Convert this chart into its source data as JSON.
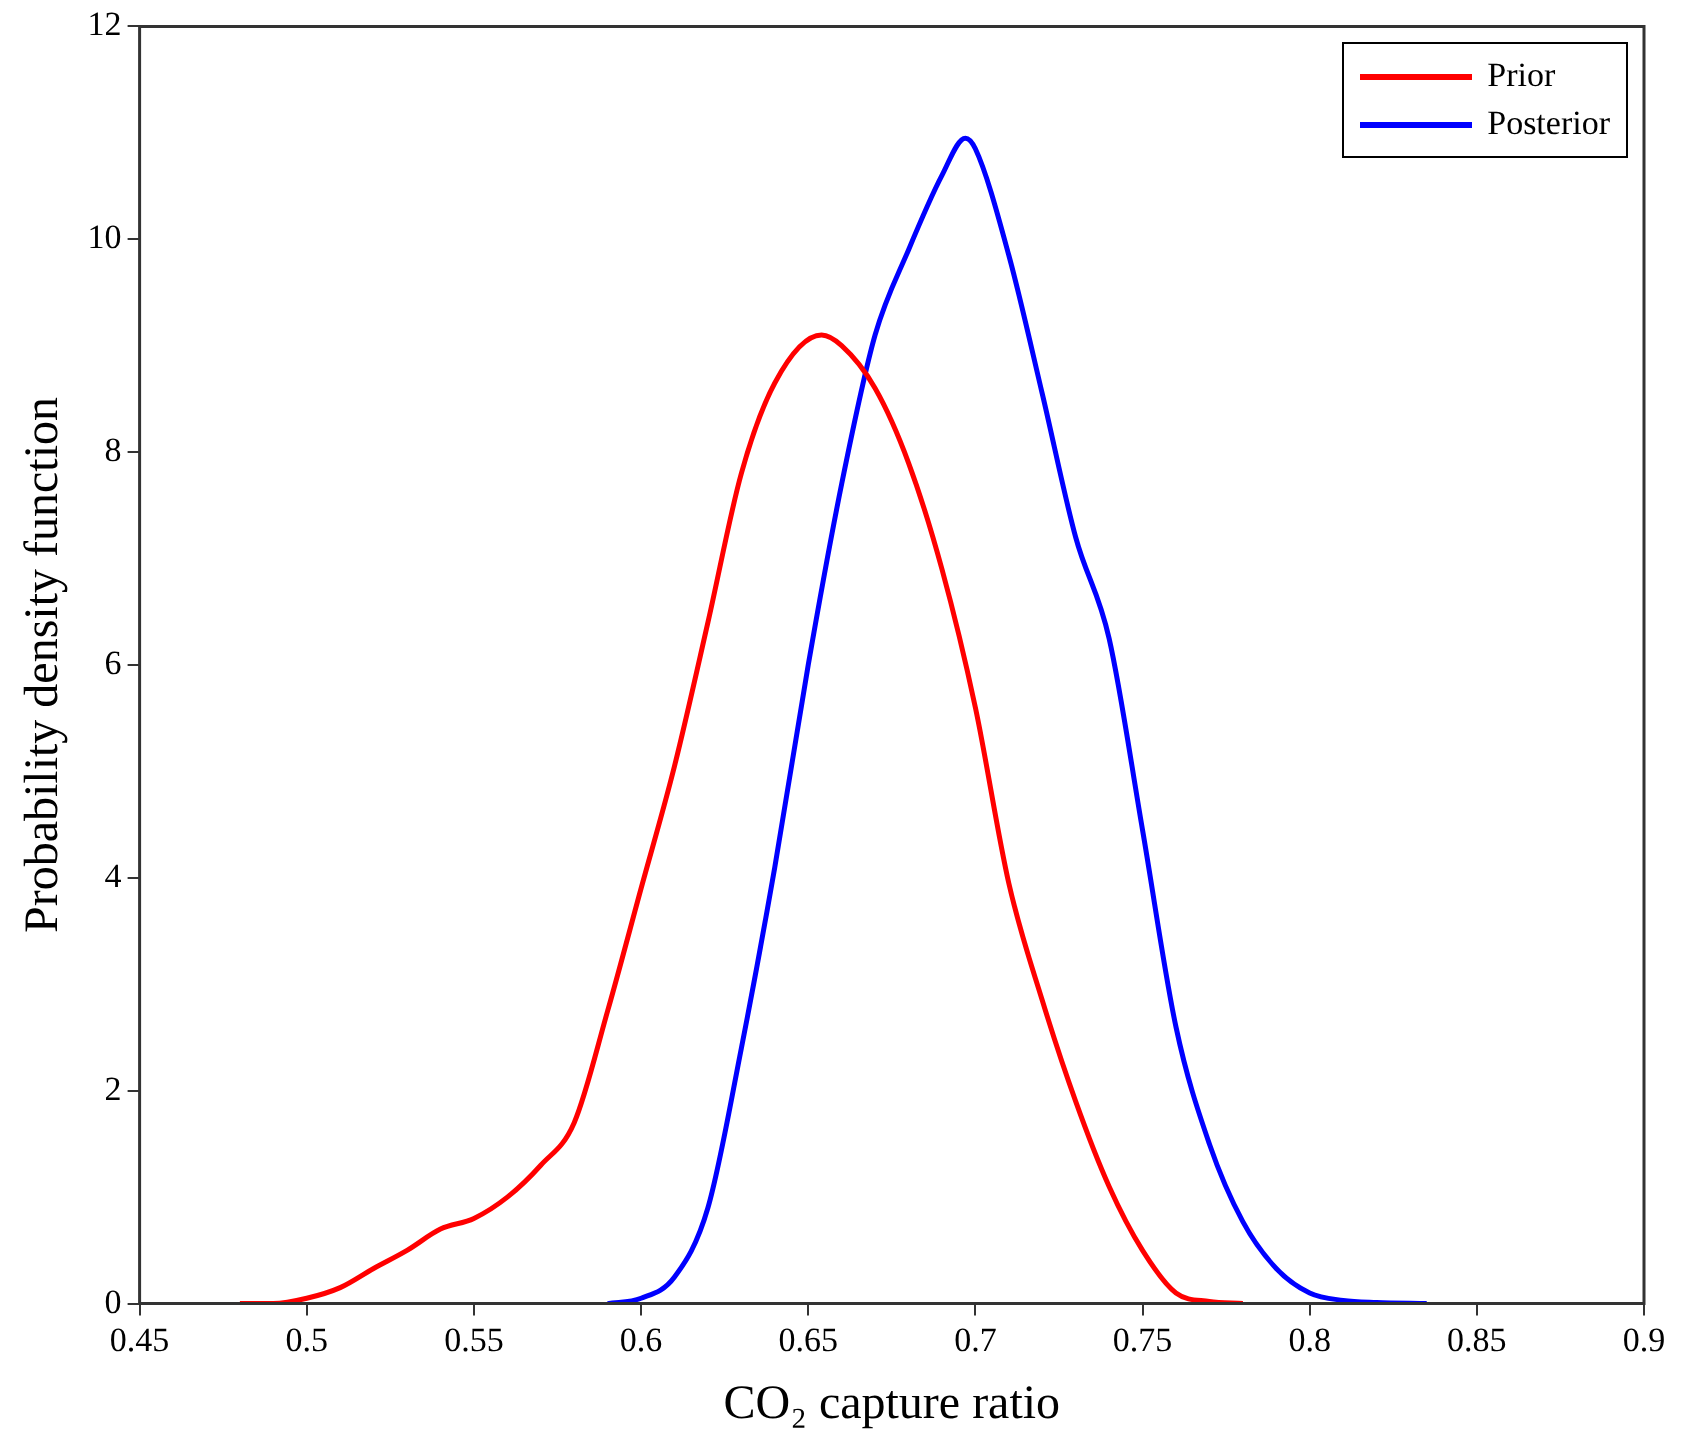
{
  "chart_data": {
    "type": "line",
    "xlabel": "CO₂ capture ratio",
    "ylabel": "Probability density function",
    "xlim": [
      0.45,
      0.9
    ],
    "xticks": [
      0.45,
      0.5,
      0.55,
      0.6,
      0.65,
      0.7,
      0.75,
      0.8,
      0.85,
      0.9
    ],
    "ylim": [
      0,
      12
    ],
    "yticks": [
      0,
      2,
      4,
      6,
      8,
      10,
      12
    ],
    "grid": false,
    "legend": "top right",
    "marker": "none",
    "line_style": "solid",
    "series": [
      {
        "name": "Prior",
        "color": "#ff0000",
        "x": [
          0.48,
          0.49,
          0.5,
          0.51,
          0.52,
          0.53,
          0.54,
          0.55,
          0.56,
          0.57,
          0.58,
          0.59,
          0.6,
          0.61,
          0.62,
          0.63,
          0.64,
          0.654,
          0.66,
          0.67,
          0.68,
          0.69,
          0.7,
          0.71,
          0.72,
          0.73,
          0.74,
          0.75,
          0.76,
          0.77,
          0.78
        ],
        "values": [
          0,
          0,
          0.05,
          0.15,
          0.33,
          0.5,
          0.7,
          0.8,
          1.0,
          1.3,
          1.7,
          2.75,
          3.9,
          5.05,
          6.4,
          7.8,
          8.65,
          9.1,
          9.0,
          8.6,
          7.9,
          6.9,
          5.6,
          3.95,
          2.85,
          1.9,
          1.1,
          0.5,
          0.1,
          0.02,
          0
        ]
      },
      {
        "name": "Posterior",
        "color": "#0000ff",
        "x": [
          0.59,
          0.6,
          0.61,
          0.62,
          0.63,
          0.64,
          0.65,
          0.66,
          0.67,
          0.68,
          0.69,
          0.697,
          0.7,
          0.71,
          0.72,
          0.73,
          0.74,
          0.75,
          0.76,
          0.77,
          0.78,
          0.79,
          0.8,
          0.81,
          0.82,
          0.835
        ],
        "values": [
          0,
          0.05,
          0.25,
          0.9,
          2.4,
          4.1,
          6.0,
          7.7,
          9.1,
          9.9,
          10.6,
          10.95,
          10.85,
          9.85,
          8.55,
          7.2,
          6.25,
          4.45,
          2.6,
          1.5,
          0.77,
          0.33,
          0.1,
          0.03,
          0.01,
          0
        ]
      }
    ]
  }
}
